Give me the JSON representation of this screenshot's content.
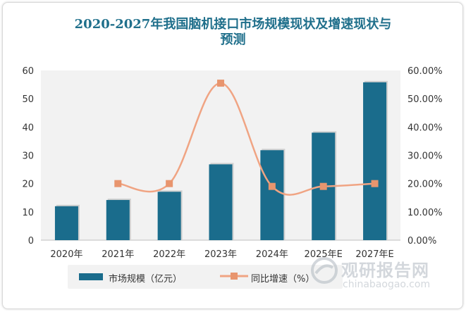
{
  "title_line1": "2020-2027年我国脑机接口市场规模现状及增速现状与",
  "title_line2": "预测",
  "legend": {
    "bar_label": "市场规模（亿元）",
    "line_label": "同比增速（%）"
  },
  "watermark": {
    "cn": "观研报告网",
    "en": "chinabaogao.com"
  },
  "colors": {
    "bar": "#1a6c8c",
    "line": "#f0a483",
    "marker": "#e8956e",
    "title": "#1f6f8b",
    "plot_bg": "#f2f2f2"
  },
  "chart_data": {
    "type": "bar",
    "categories": [
      "2020年",
      "2021年",
      "2022年",
      "2023年",
      "2024年",
      "2025年E",
      "2027年E"
    ],
    "series": [
      {
        "name": "市场规模（亿元）",
        "type": "bar",
        "axis": "left",
        "values": [
          12,
          14.2,
          17.1,
          26.8,
          31.8,
          38,
          55.8
        ]
      },
      {
        "name": "同比增速（%）",
        "type": "line",
        "axis": "right",
        "values": [
          null,
          0.2,
          0.2,
          0.555,
          0.19,
          0.19,
          0.2
        ]
      }
    ],
    "y_left": {
      "min": 0,
      "max": 60,
      "ticks": [
        "0",
        "10",
        "20",
        "30",
        "40",
        "50",
        "60"
      ]
    },
    "y_right": {
      "min": 0,
      "max": 0.6,
      "ticks": [
        "0.00%",
        "10.00%",
        "20.00%",
        "30.00%",
        "40.00%",
        "50.00%",
        "60.00%"
      ]
    },
    "grid": false,
    "legend_position": "bottom"
  }
}
